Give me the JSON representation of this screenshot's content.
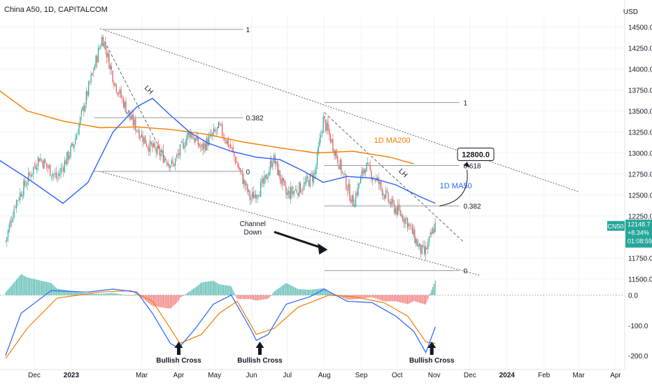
{
  "header": {
    "title": "China A50, 1D, CAPITALCOM",
    "currency": "USD"
  },
  "price_badge": {
    "symbol": "CN50",
    "price": "12148.7",
    "change": "+8.34%",
    "countdown": "01:08:59"
  },
  "colors": {
    "up": "#26a69a",
    "down": "#ef5350",
    "ma50": "#2962ff",
    "ma200": "#f57c00",
    "line": "#131722",
    "fib": "#9598a1",
    "grid": "#f0f3fa"
  },
  "chart_data": [
    {
      "type": "candlestick",
      "title": "China A50, 1D, CAPITALCOM",
      "y_unit": "USD",
      "yticks": [
        11500,
        11750,
        12000,
        12250,
        12500,
        12750,
        13000,
        13250,
        13500,
        13750,
        14000,
        14250,
        14500
      ],
      "ytick_labels": [
        "11500.0",
        "11750.0",
        "12000.0",
        "12250.0",
        "12500.0",
        "12750.0",
        "13000.0",
        "13250.0",
        "13500.0",
        "13750.0",
        "14000.0",
        "14250.0",
        "14500.0"
      ],
      "ylim": [
        11380,
        14620
      ],
      "x_labels": [
        "Dec",
        "2023",
        "Mar",
        "Apr",
        "May",
        "Jun",
        "Jul",
        "Aug",
        "Sep",
        "Oct",
        "Nov",
        "Dec",
        "2024",
        "Feb",
        "Mar",
        "Apr"
      ],
      "price_path": [
        [
          "2022-11-07",
          11950
        ],
        [
          "2022-11-15",
          12400
        ],
        [
          "2022-12-05",
          12950
        ],
        [
          "2022-12-20",
          12700
        ],
        [
          "2023-01-03",
          13100
        ],
        [
          "2023-01-17",
          13850
        ],
        [
          "2023-01-27",
          14380
        ],
        [
          "2023-02-06",
          13850
        ],
        [
          "2023-02-20",
          13400
        ],
        [
          "2023-03-06",
          13100
        ],
        [
          "2023-03-20",
          12950
        ],
        [
          "2023-03-27",
          12850
        ],
        [
          "2023-04-10",
          13250
        ],
        [
          "2023-04-20",
          13050
        ],
        [
          "2023-05-05",
          13300
        ],
        [
          "2023-05-15",
          13050
        ],
        [
          "2023-05-31",
          12450
        ],
        [
          "2023-06-12",
          12650
        ],
        [
          "2023-06-19",
          12950
        ],
        [
          "2023-06-30",
          12500
        ],
        [
          "2023-07-14",
          12600
        ],
        [
          "2023-07-24",
          12750
        ],
        [
          "2023-07-31",
          13400
        ],
        [
          "2023-08-08",
          13100
        ],
        [
          "2023-08-25",
          12400
        ],
        [
          "2023-09-04",
          12850
        ],
        [
          "2023-09-15",
          12650
        ],
        [
          "2023-09-25",
          12400
        ],
        [
          "2023-10-09",
          12200
        ],
        [
          "2023-10-20",
          11850
        ],
        [
          "2023-10-24",
          11800
        ],
        [
          "2023-11-02",
          12148.7
        ]
      ],
      "ma50_path": [
        [
          "2022-11-01",
          12920
        ],
        [
          "2022-11-25",
          12700
        ],
        [
          "2022-12-25",
          12400
        ],
        [
          "2023-01-15",
          12650
        ],
        [
          "2023-02-05",
          13250
        ],
        [
          "2023-02-25",
          13550
        ],
        [
          "2023-03-10",
          13650
        ],
        [
          "2023-03-25",
          13450
        ],
        [
          "2023-04-10",
          13250
        ],
        [
          "2023-04-25",
          13120
        ],
        [
          "2023-05-15",
          13020
        ],
        [
          "2023-06-05",
          12950
        ],
        [
          "2023-06-25",
          12920
        ],
        [
          "2023-07-15",
          12780
        ],
        [
          "2023-07-31",
          12650
        ],
        [
          "2023-08-20",
          12720
        ],
        [
          "2023-09-10",
          12700
        ],
        [
          "2023-09-30",
          12620
        ],
        [
          "2023-10-20",
          12480
        ],
        [
          "2023-11-02",
          12400
        ]
      ],
      "ma200_path": [
        [
          "2022-11-01",
          13750
        ],
        [
          "2022-11-25",
          13500
        ],
        [
          "2022-12-25",
          13380
        ],
        [
          "2023-01-25",
          13300
        ],
        [
          "2023-02-25",
          13310
        ],
        [
          "2023-03-25",
          13280
        ],
        [
          "2023-04-25",
          13220
        ],
        [
          "2023-05-25",
          13130
        ],
        [
          "2023-06-25",
          13060
        ],
        [
          "2023-07-25",
          13000
        ],
        [
          "2023-08-25",
          13020
        ],
        [
          "2023-09-25",
          12950
        ],
        [
          "2023-10-15",
          12870
        ]
      ],
      "series": [
        {
          "name": "1D MA50",
          "color": "#2962ff"
        },
        {
          "name": "1D MA200",
          "color": "#f57c00"
        }
      ],
      "fib_levels_1": [
        {
          "label": "1",
          "value": 14470
        },
        {
          "label": "0.382",
          "value": 13420
        },
        {
          "label": "0",
          "value": 12780
        }
      ],
      "fib_levels_2": [
        {
          "label": "1",
          "value": 13600
        },
        {
          "label": "0.618",
          "value": 12850
        },
        {
          "label": "0.382",
          "value": 12370
        },
        {
          "label": "0",
          "value": 11600
        }
      ],
      "annotations": {
        "channel": "Channel\nDown",
        "lh_1": "LH",
        "lh_2": "LH",
        "target": "12800.0"
      }
    },
    {
      "type": "macd",
      "yticks": [
        0,
        -100,
        -200
      ],
      "ytick_labels": [
        "0.0",
        "-100.0",
        "-200.0"
      ],
      "ylim": [
        -235,
        20
      ],
      "macd_path": [
        [
          "2022-11-07",
          -200
        ],
        [
          "2022-11-20",
          -60
        ],
        [
          "2022-12-15",
          15
        ],
        [
          "2023-01-15",
          10
        ],
        [
          "2023-02-05",
          20
        ],
        [
          "2023-02-25",
          10
        ],
        [
          "2023-03-10",
          -60
        ],
        [
          "2023-03-25",
          -160
        ],
        [
          "2023-04-01",
          -175
        ],
        [
          "2023-04-15",
          -110
        ],
        [
          "2023-04-30",
          -30
        ],
        [
          "2023-05-15",
          0
        ],
        [
          "2023-05-31",
          -110
        ],
        [
          "2023-06-05",
          -150
        ],
        [
          "2023-06-15",
          -130
        ],
        [
          "2023-06-30",
          -30
        ],
        [
          "2023-07-20",
          -5
        ],
        [
          "2023-08-01",
          20
        ],
        [
          "2023-08-20",
          -20
        ],
        [
          "2023-09-10",
          -25
        ],
        [
          "2023-09-30",
          -70
        ],
        [
          "2023-10-15",
          -120
        ],
        [
          "2023-10-25",
          -190
        ],
        [
          "2023-11-02",
          -105
        ]
      ],
      "signal_path": [
        [
          "2022-11-07",
          -210
        ],
        [
          "2022-11-25",
          -110
        ],
        [
          "2022-12-20",
          -10
        ],
        [
          "2023-01-25",
          10
        ],
        [
          "2023-02-20",
          15
        ],
        [
          "2023-03-10",
          -20
        ],
        [
          "2023-03-25",
          -110
        ],
        [
          "2023-04-02",
          -160
        ],
        [
          "2023-04-20",
          -130
        ],
        [
          "2023-05-05",
          -60
        ],
        [
          "2023-05-20",
          -20
        ],
        [
          "2023-06-05",
          -130
        ],
        [
          "2023-06-20",
          -110
        ],
        [
          "2023-07-10",
          -40
        ],
        [
          "2023-08-05",
          0
        ],
        [
          "2023-08-25",
          -5
        ],
        [
          "2023-09-20",
          -25
        ],
        [
          "2023-10-10",
          -70
        ],
        [
          "2023-10-25",
          -155
        ],
        [
          "2023-11-02",
          -160
        ]
      ],
      "annotations": [
        "Bullish Cross",
        "Bullish Cross",
        "Bullish Cross"
      ]
    }
  ]
}
